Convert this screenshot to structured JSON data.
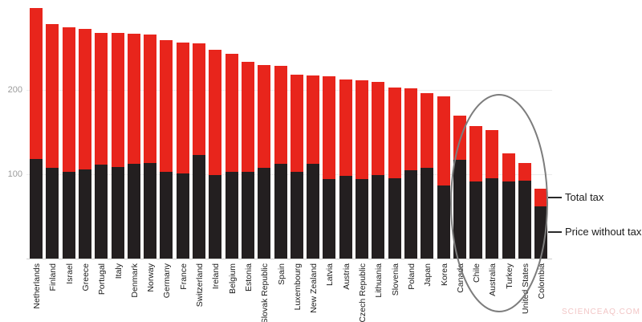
{
  "watermark": "SCIENCEAQ.COM",
  "legend": {
    "total_tax": "Total tax",
    "price_without_tax": "Price without tax"
  },
  "y_axis": {
    "ticks": [
      100,
      200
    ]
  },
  "annotation": {
    "shape": "ellipse",
    "highlighted_countries": [
      "Chile",
      "Australia",
      "Turkey",
      "United States"
    ]
  },
  "colors": {
    "total_tax": "#e8251c",
    "price_without_tax": "#231f20",
    "axis_text": "#9b9b9b",
    "gridline": "#ececec",
    "ellipse": "#7d7d7d",
    "watermark": "#f2c6c6"
  },
  "chart_data": {
    "type": "bar",
    "stacked": true,
    "title": "",
    "xlabel": "",
    "ylabel": "",
    "ylim": [
      0,
      300
    ],
    "grid": true,
    "legend_position": "right-of-last-bar",
    "categories": [
      "Netherlands",
      "Finland",
      "Israel",
      "Greece",
      "Portugal",
      "Italy",
      "Denmark",
      "Norway",
      "Germany",
      "France",
      "Switzerland",
      "Ireland",
      "Belgium",
      "Estonia",
      "Slovak Republic",
      "Spain",
      "Luxembourg",
      "New Zealand",
      "Latvia",
      "Austria",
      "Czech Republic",
      "Lithuania",
      "Slovenia",
      "Poland",
      "Japan",
      "Korea",
      "Canada",
      "Chile",
      "Australia",
      "Turkey",
      "United States",
      "Colombia"
    ],
    "series": [
      {
        "name": "Price without tax",
        "color": "#231f20",
        "values": [
          118,
          108,
          103,
          106,
          111,
          109,
          112,
          113,
          103,
          101,
          123,
          99,
          103,
          103,
          108,
          112,
          103,
          112,
          94,
          98,
          94,
          99,
          95,
          105,
          108,
          87,
          117,
          91,
          95,
          91,
          92,
          62
        ]
      },
      {
        "name": "Total tax",
        "color": "#e8251c",
        "values": [
          179,
          170,
          171,
          166,
          157,
          159,
          155,
          153,
          156,
          155,
          132,
          149,
          140,
          130,
          122,
          117,
          115,
          105,
          122,
          114,
          117,
          111,
          108,
          97,
          88,
          105,
          53,
          66,
          57,
          34,
          21,
          21
        ]
      }
    ],
    "stack_totals": [
      297,
      278,
      274,
      272,
      268,
      268,
      267,
      266,
      259,
      256,
      255,
      248,
      243,
      233,
      230,
      229,
      218,
      217,
      216,
      212,
      211,
      210,
      203,
      202,
      196,
      192,
      170,
      157,
      152,
      125,
      113,
      83
    ]
  }
}
